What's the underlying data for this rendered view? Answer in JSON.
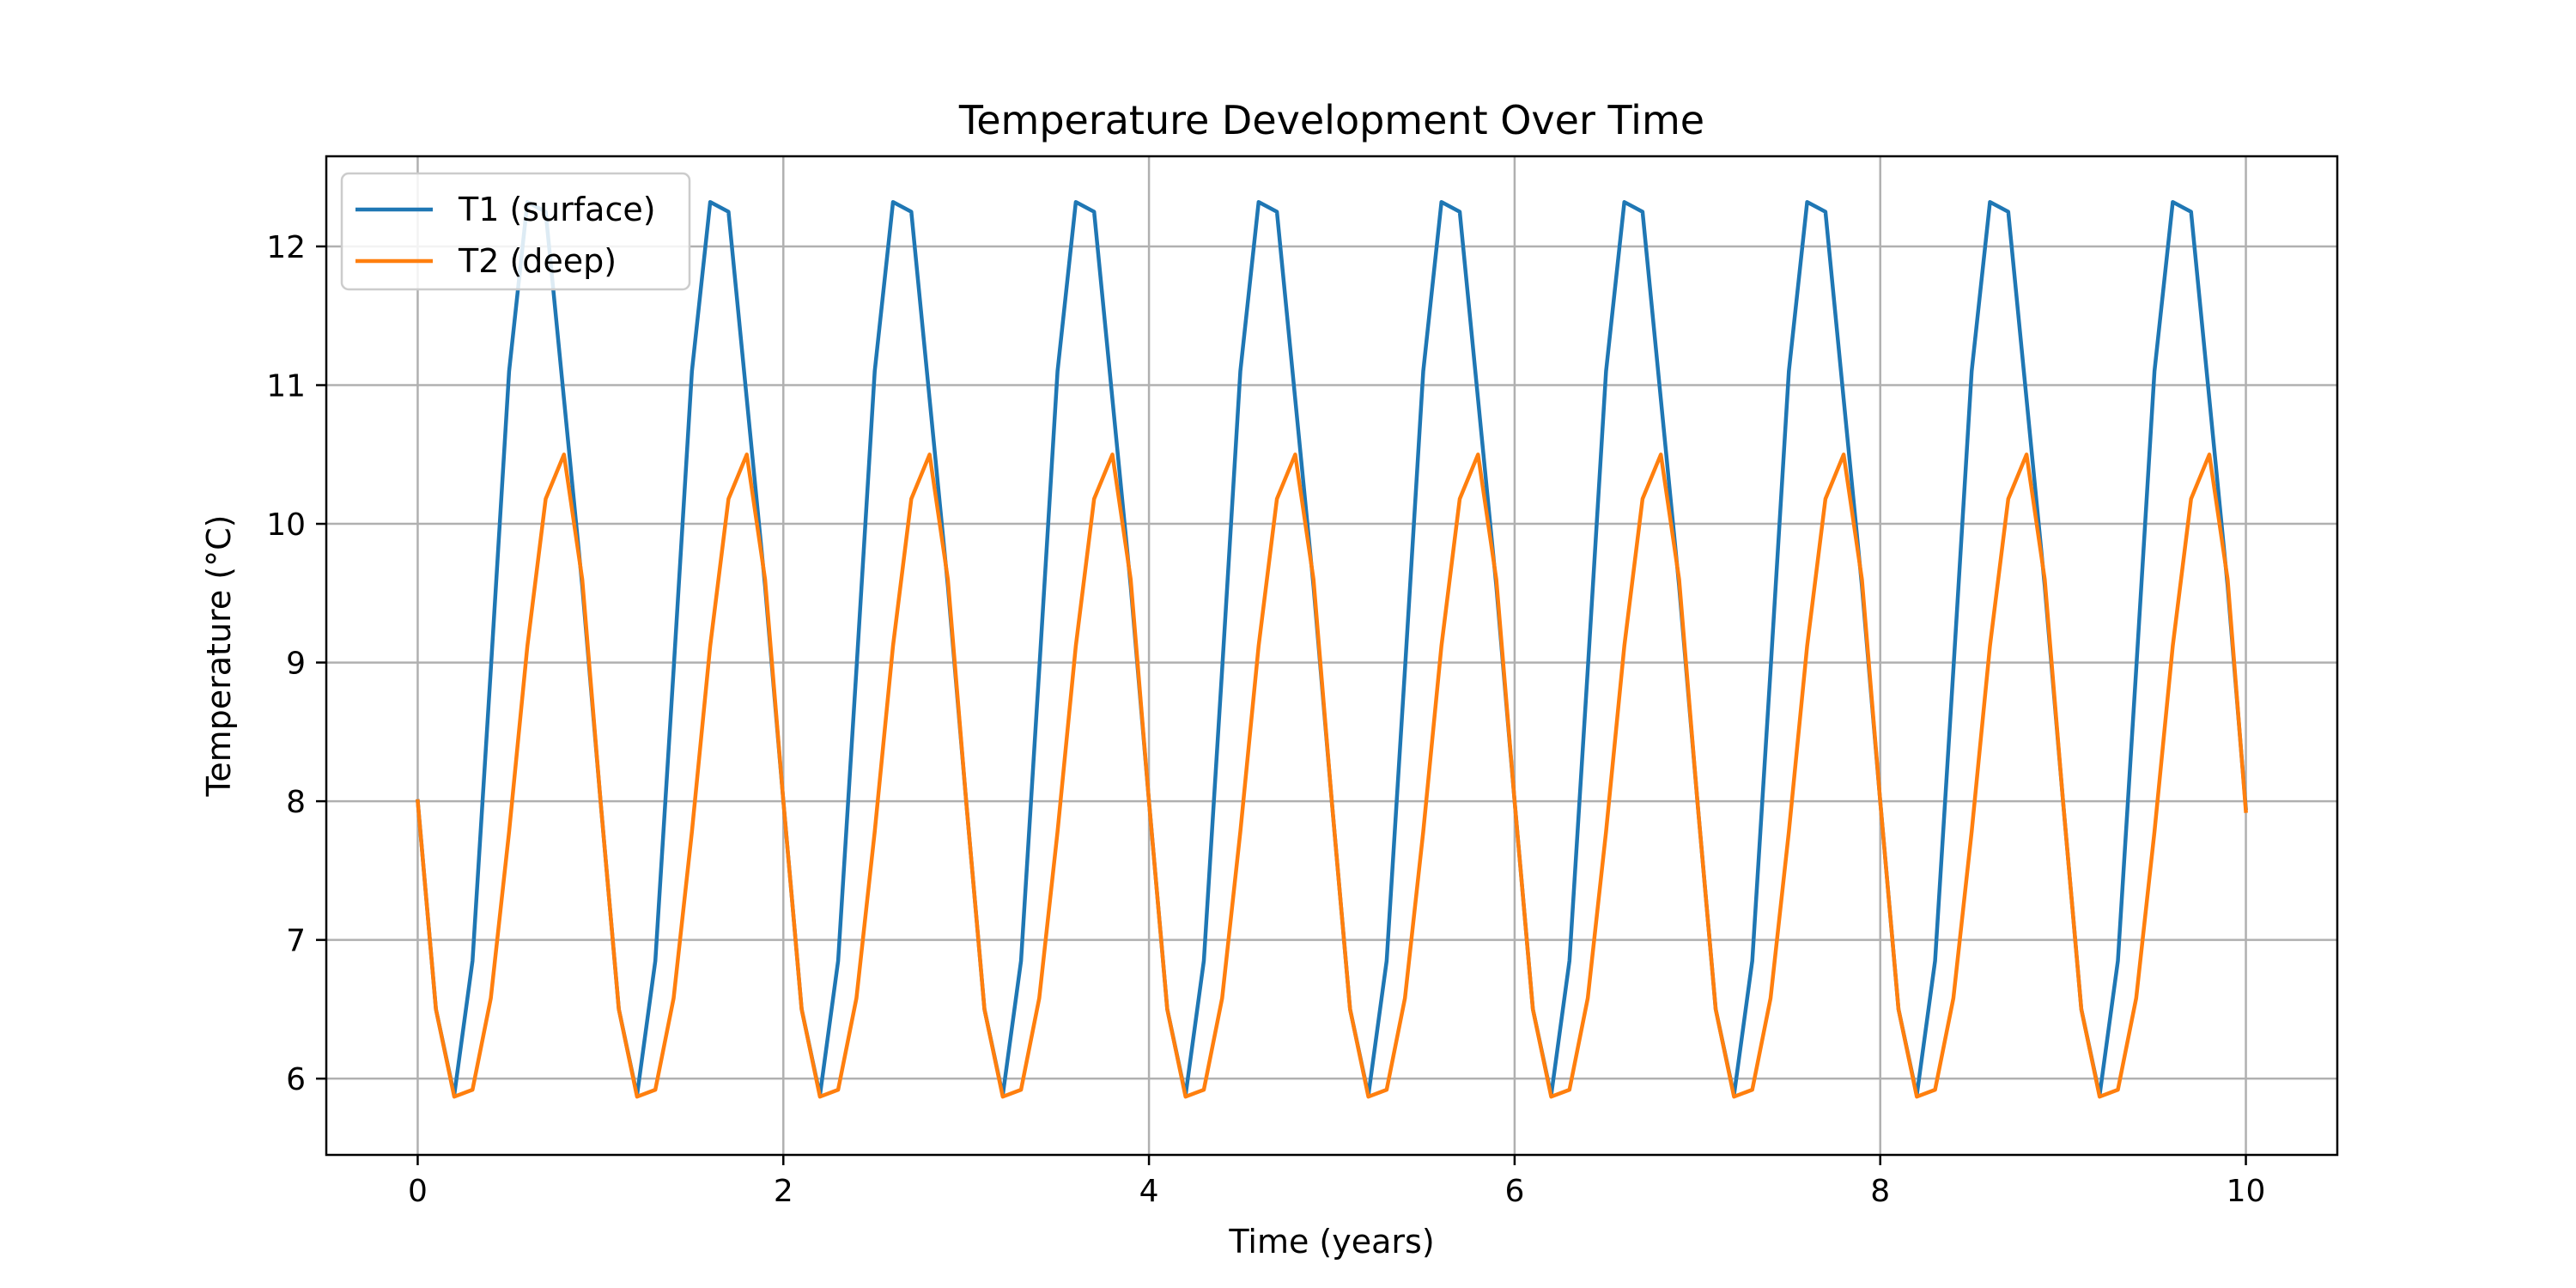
{
  "chart_data": {
    "type": "line",
    "title": "Temperature Development Over Time",
    "xlabel": "Time (years)",
    "ylabel": "Temperature (°C)",
    "xlim": [
      -0.5,
      10.5
    ],
    "ylim": [
      5.45,
      12.65
    ],
    "x_ticks": [
      0,
      2,
      4,
      6,
      8,
      10
    ],
    "y_ticks": [
      6,
      7,
      8,
      9,
      10,
      11,
      12
    ],
    "grid": true,
    "legend_position": "top-left",
    "x": [
      0,
      0.1,
      0.2,
      0.3,
      0.4,
      0.5,
      0.6,
      0.7,
      0.8,
      0.9,
      1.0,
      1.1,
      1.2,
      1.3,
      1.4,
      1.5,
      1.6,
      1.7,
      1.8,
      1.9,
      2.0,
      2.1,
      2.2,
      2.3,
      2.4,
      2.5,
      2.6,
      2.7,
      2.8,
      2.9,
      3.0,
      3.1,
      3.2,
      3.3,
      3.4,
      3.5,
      3.6,
      3.7,
      3.8,
      3.9,
      4.0,
      4.1,
      4.2,
      4.3,
      4.4,
      4.5,
      4.6,
      4.7,
      4.8,
      4.9,
      5.0,
      5.1,
      5.2,
      5.3,
      5.4,
      5.5,
      5.6,
      5.7,
      5.8,
      5.9,
      6.0,
      6.1,
      6.2,
      6.3,
      6.4,
      6.5,
      6.6,
      6.7,
      6.8,
      6.9,
      7.0,
      7.1,
      7.2,
      7.3,
      7.4,
      7.5,
      7.6,
      7.7,
      7.8,
      7.9,
      8.0,
      8.1,
      8.2,
      8.3,
      8.4,
      8.5,
      8.6,
      8.7,
      8.8,
      8.9,
      9.0,
      9.1,
      9.2,
      9.3,
      9.4,
      9.5,
      9.6,
      9.7,
      9.8,
      9.9,
      10.0
    ],
    "series": [
      {
        "name": "T1 (surface)",
        "color": "#1f77b4",
        "values": [
          8.0,
          6.5,
          5.88,
          6.85,
          8.95,
          11.1,
          12.32,
          12.25,
          10.9,
          9.55,
          8.0,
          6.5,
          5.88,
          6.85,
          8.95,
          11.1,
          12.32,
          12.25,
          10.9,
          9.55,
          8.0,
          6.5,
          5.88,
          6.85,
          8.95,
          11.1,
          12.32,
          12.25,
          10.9,
          9.55,
          8.0,
          6.5,
          5.88,
          6.85,
          8.95,
          11.1,
          12.32,
          12.25,
          10.9,
          9.55,
          8.0,
          6.5,
          5.88,
          6.85,
          8.95,
          11.1,
          12.32,
          12.25,
          10.9,
          9.55,
          8.0,
          6.5,
          5.88,
          6.85,
          8.95,
          11.1,
          12.32,
          12.25,
          10.9,
          9.55,
          8.0,
          6.5,
          5.88,
          6.85,
          8.95,
          11.1,
          12.32,
          12.25,
          10.9,
          9.55,
          8.0,
          6.5,
          5.88,
          6.85,
          8.95,
          11.1,
          12.32,
          12.25,
          10.9,
          9.55,
          8.0,
          6.5,
          5.88,
          6.85,
          8.95,
          11.1,
          12.32,
          12.25,
          10.9,
          9.55,
          8.0,
          6.5,
          5.88,
          6.85,
          8.95,
          11.1,
          12.32,
          12.25,
          10.9,
          9.55,
          7.95
        ]
      },
      {
        "name": "T2 (deep)",
        "color": "#ff7f0e",
        "values": [
          8.0,
          6.5,
          5.87,
          5.92,
          6.58,
          7.78,
          9.12,
          10.18,
          10.5,
          9.6,
          8.0,
          6.5,
          5.87,
          5.92,
          6.58,
          7.78,
          9.12,
          10.18,
          10.5,
          9.6,
          8.0,
          6.5,
          5.87,
          5.92,
          6.58,
          7.78,
          9.12,
          10.18,
          10.5,
          9.6,
          8.0,
          6.5,
          5.87,
          5.92,
          6.58,
          7.78,
          9.12,
          10.18,
          10.5,
          9.6,
          8.0,
          6.5,
          5.87,
          5.92,
          6.58,
          7.78,
          9.12,
          10.18,
          10.5,
          9.6,
          8.0,
          6.5,
          5.87,
          5.92,
          6.58,
          7.78,
          9.12,
          10.18,
          10.5,
          9.6,
          8.0,
          6.5,
          5.87,
          5.92,
          6.58,
          7.78,
          9.12,
          10.18,
          10.5,
          9.6,
          8.0,
          6.5,
          5.87,
          5.92,
          6.58,
          7.78,
          9.12,
          10.18,
          10.5,
          9.6,
          8.0,
          6.5,
          5.87,
          5.92,
          6.58,
          7.78,
          9.12,
          10.18,
          10.5,
          9.6,
          8.0,
          6.5,
          5.87,
          5.92,
          6.58,
          7.78,
          9.12,
          10.18,
          10.5,
          9.6,
          7.93
        ]
      }
    ]
  }
}
